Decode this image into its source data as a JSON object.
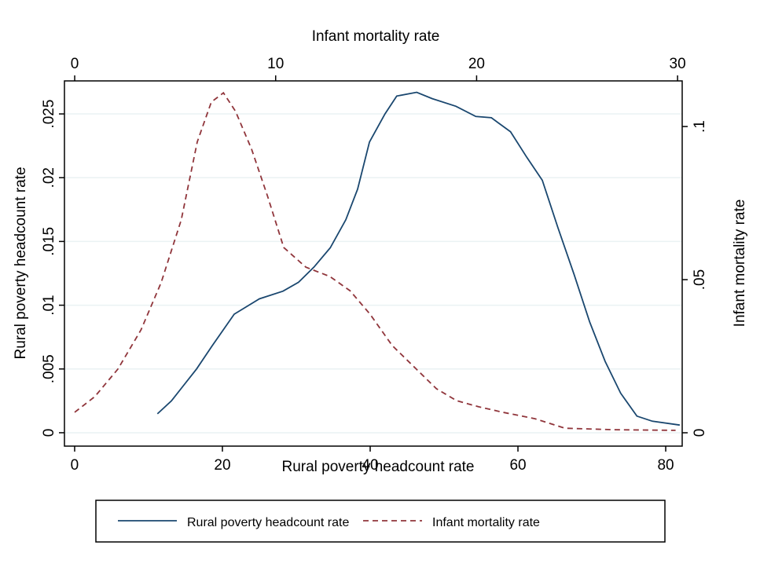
{
  "chart_data": {
    "type": "line",
    "xlabel": "Rural poverty headcount rate",
    "x2label": "Infant mortality rate",
    "ylabel": "Rural poverty headcount rate",
    "y2label": "Infant mortality rate",
    "xlim": [
      -1.38,
      82.23
    ],
    "xticks": [
      0,
      20,
      40,
      60,
      80
    ],
    "x2lim": [
      -0.51,
      30.23
    ],
    "x2ticks": [
      0,
      10,
      20,
      30
    ],
    "ylim": [
      -0.00105,
      0.02759
    ],
    "yticks": [
      0,
      {
        "value": 0.005,
        "label": ".005"
      },
      {
        "value": 0.01,
        "label": ".01"
      },
      {
        "value": 0.015,
        "label": ".015"
      },
      {
        "value": 0.02,
        "label": ".02"
      },
      {
        "value": 0.025,
        "label": ".025"
      }
    ],
    "y2lim": [
      -0.00436,
      0.1149
    ],
    "y2ticks": [
      0,
      {
        "value": 0.05,
        "label": ".05"
      },
      {
        "value": 0.1,
        "label": ".1"
      }
    ],
    "grid": true,
    "series": [
      {
        "name": "Rural poverty headcount rate",
        "color": "#1a476f",
        "dash": false,
        "x": [
          11.2,
          13.1,
          14.6,
          16.5,
          18.6,
          21.6,
          25.0,
          28.2,
          30.3,
          32.4,
          34.6,
          36.7,
          38.3,
          39.9,
          42.0,
          43.6,
          46.3,
          48.4,
          51.6,
          54.3,
          56.4,
          59.0,
          61.2,
          63.3,
          65.4,
          67.6,
          69.7,
          71.8,
          73.9,
          76.1,
          78.2,
          81.9
        ],
        "values": [
          0.00148,
          0.0025,
          0.0036,
          0.005,
          0.0068,
          0.0093,
          0.0105,
          0.0111,
          0.0118,
          0.013,
          0.0145,
          0.0167,
          0.0191,
          0.0228,
          0.025,
          0.0264,
          0.0267,
          0.0262,
          0.0256,
          0.0248,
          0.0247,
          0.0236,
          0.0216,
          0.0198,
          0.0161,
          0.0124,
          0.0087,
          0.0056,
          0.0031,
          0.0013,
          0.0009,
          0.0006
        ]
      },
      {
        "name": "Infant mortality rate",
        "color": "#90353b",
        "dash": true,
        "axis": "y2",
        "xaxis": "x2",
        "x": [
          0,
          1.0,
          2.15,
          3.3,
          4.3,
          5.3,
          6.1,
          6.8,
          7.4,
          8.0,
          8.8,
          9.6,
          10.4,
          11.5,
          12.7,
          13.7,
          14.7,
          15.8,
          17.0,
          18.0,
          19.0,
          20.1,
          21.3,
          22.9,
          24.4,
          26.8,
          29.9
        ],
        "values": [
          0.0067,
          0.0118,
          0.0208,
          0.0336,
          0.049,
          0.0695,
          0.095,
          0.108,
          0.111,
          0.105,
          0.0926,
          0.0772,
          0.0605,
          0.0541,
          0.051,
          0.0464,
          0.0387,
          0.0285,
          0.0208,
          0.0144,
          0.0105,
          0.0085,
          0.0067,
          0.0046,
          0.0015,
          0.001,
          0.0008
        ]
      }
    ]
  }
}
